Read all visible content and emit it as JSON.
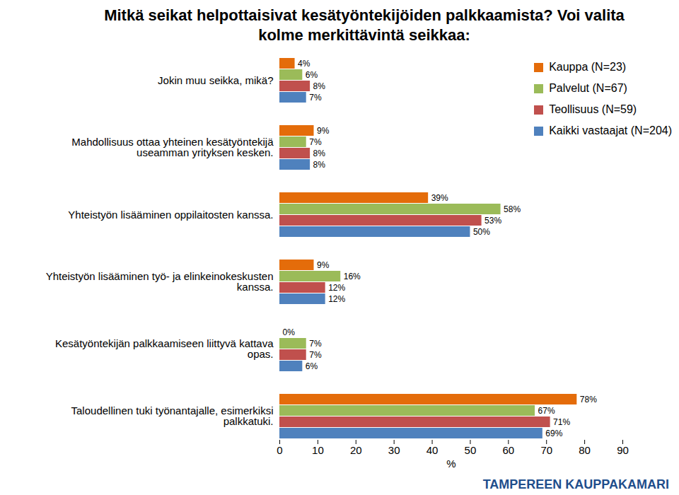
{
  "chart_data": {
    "type": "bar",
    "orientation": "horizontal",
    "title": "Mitkä seikat helpottaisivat kesätyöntekijöiden palkkaamista? Voi valita kolme merkittävintä seikkaa:",
    "annotations": [
      "TAMPEREEN KAUPPAKAMARI"
    ],
    "x_label": "%",
    "categories": [
      "Jokin muu seikka, mikä?",
      "Mahdollisuus ottaa yhteinen kesätyöntekijä useamman yrityksen kesken.",
      "Yhteistyön lisääminen oppilaitosten kanssa.",
      "Yhteistyön lisääminen työ- ja elinkeinokeskusten kanssa.",
      "Kesätyöntekijän palkkaamiseen liittyvä kattava opas.",
      "Taloudellinen tuki työnantajalle, esimerkiksi palkkatuki."
    ],
    "series": [
      {
        "name": "Kauppa (N=23)",
        "color": "#e46c0a",
        "values": [
          4,
          9,
          39,
          9,
          0,
          78
        ],
        "value_labels": [
          "4%",
          "9%",
          "39%",
          "9%",
          "0%",
          "78%"
        ]
      },
      {
        "name": "Palvelut (N=67)",
        "color": "#9bbb59",
        "values": [
          6,
          7,
          58,
          16,
          7,
          67
        ],
        "value_labels": [
          "6%",
          "7%",
          "58%",
          "16%",
          "7%",
          "67%"
        ]
      },
      {
        "name": "Teollisuus (N=59)",
        "color": "#c0504d",
        "values": [
          8,
          8,
          53,
          12,
          7,
          71
        ],
        "value_labels": [
          "8%",
          "8%",
          "53%",
          "12%",
          "7%",
          "71%"
        ]
      },
      {
        "name": "Kaikki vastaajat (N=204)",
        "color": "#4f81bd",
        "values": [
          7,
          8,
          50,
          12,
          6,
          69
        ],
        "value_labels": [
          "7%",
          "8%",
          "50%",
          "12%",
          "6%",
          "69%"
        ]
      }
    ],
    "xlim": [
      0,
      90
    ],
    "xticks": [
      0,
      10,
      20,
      30,
      40,
      50,
      60,
      70,
      80,
      90
    ],
    "grid": false,
    "legend": "top-right",
    "data_labels": true
  }
}
